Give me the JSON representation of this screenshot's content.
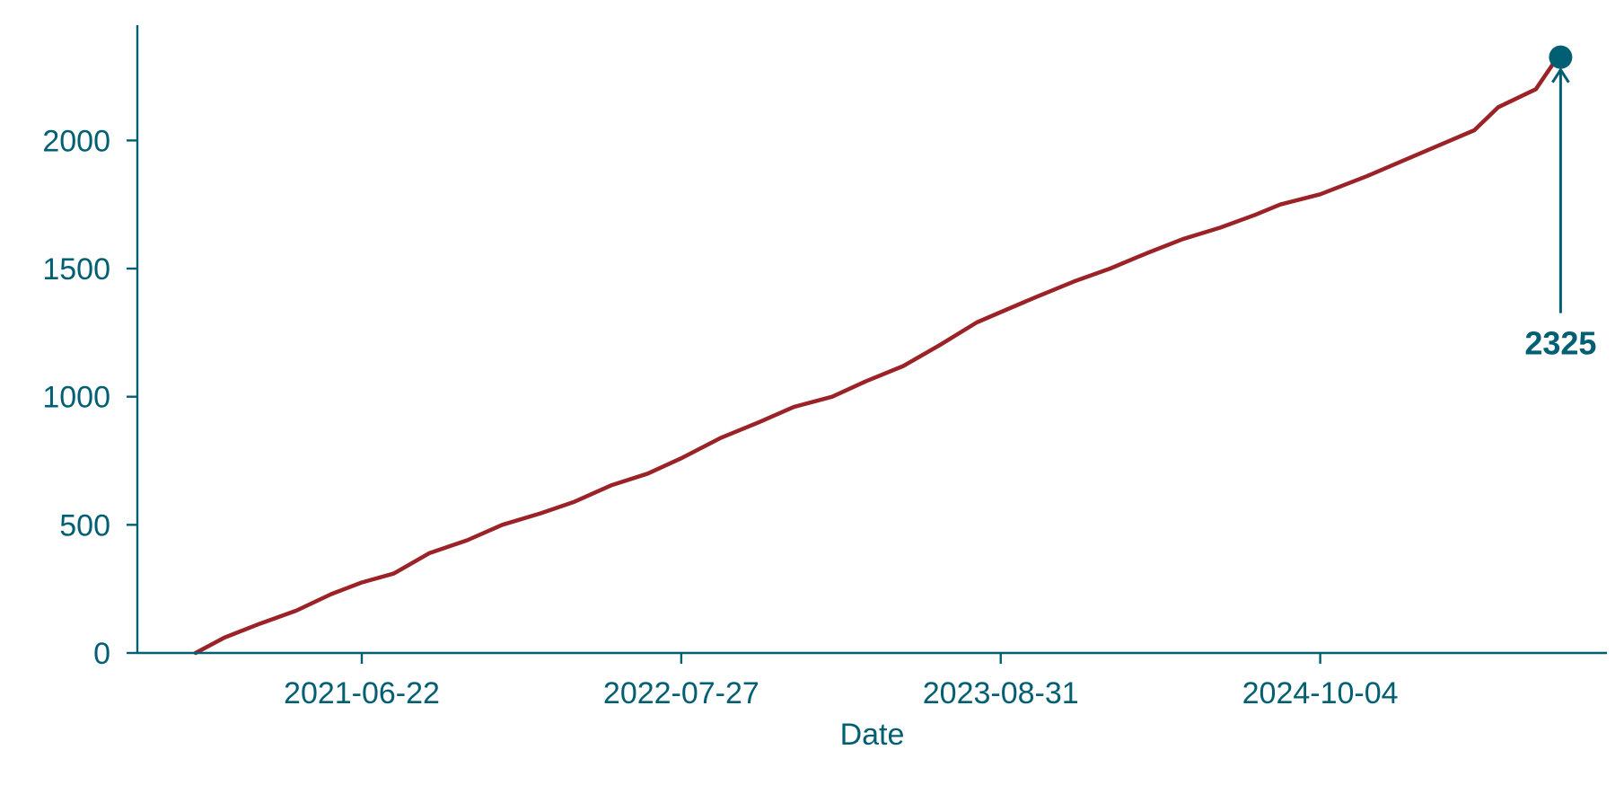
{
  "chart_data": {
    "type": "line",
    "title": "",
    "xlabel": "Date",
    "ylabel": "",
    "ylim": [
      0,
      2450
    ],
    "xlim": [
      "2020-09-14",
      "2025-09-28"
    ],
    "grid": false,
    "legend": "none",
    "x_ticks": [
      "2021-06-22",
      "2022-07-27",
      "2023-08-31",
      "2024-10-04"
    ],
    "y_ticks": [
      0,
      500,
      1000,
      1500,
      2000
    ],
    "series": [
      {
        "x": [
          "2020-11-26",
          "2021-01-01",
          "2021-02-15",
          "2021-04-01",
          "2021-05-15",
          "2021-06-22",
          "2021-08-01",
          "2021-09-15",
          "2021-11-01",
          "2021-12-15",
          "2022-02-01",
          "2022-03-15",
          "2022-05-01",
          "2022-06-15",
          "2022-07-27",
          "2022-09-15",
          "2022-11-01",
          "2022-12-15",
          "2023-02-01",
          "2023-03-15",
          "2023-05-01",
          "2023-06-15",
          "2023-08-01",
          "2023-08-31",
          "2023-10-15",
          "2023-12-01",
          "2024-01-15",
          "2024-03-01",
          "2024-04-15",
          "2024-06-01",
          "2024-07-15",
          "2024-08-15",
          "2024-10-04",
          "2024-12-01",
          "2025-01-15",
          "2025-03-01",
          "2025-04-15",
          "2025-05-15",
          "2025-07-01",
          "2025-07-25"
        ],
        "y": [
          0,
          60,
          115,
          165,
          230,
          275,
          310,
          390,
          440,
          500,
          545,
          590,
          655,
          700,
          760,
          840,
          900,
          960,
          1000,
          1060,
          1120,
          1200,
          1290,
          1330,
          1390,
          1450,
          1500,
          1560,
          1615,
          1660,
          1710,
          1750,
          1790,
          1860,
          1920,
          1980,
          2040,
          2130,
          2200,
          2310
        ]
      }
    ],
    "annotation": {
      "label": "2325",
      "x": "2025-08-01",
      "y": 2325
    },
    "colors": {
      "line": "#9b2226",
      "axis": "#005f73",
      "marker": "#005f73"
    }
  }
}
